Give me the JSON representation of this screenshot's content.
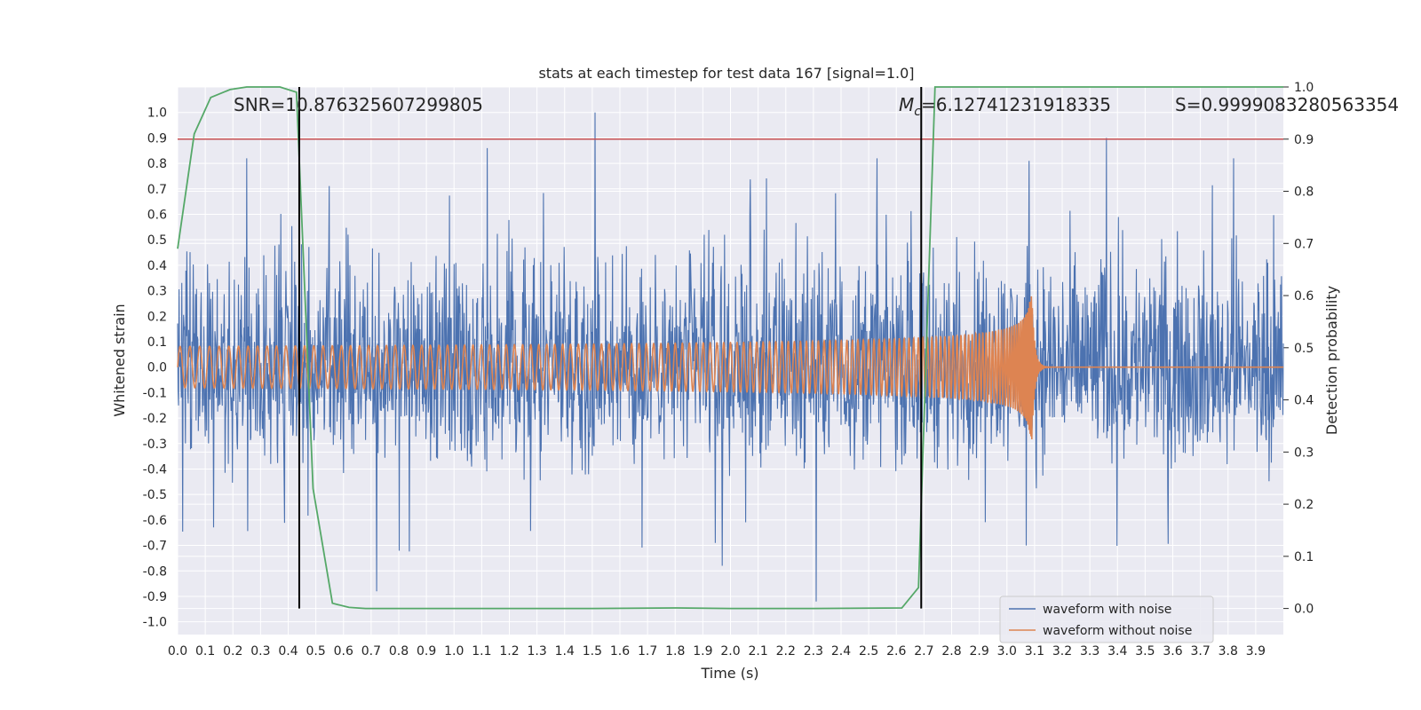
{
  "chart_data": {
    "type": "line",
    "title": "stats at each timestep for test data 167 [signal=1.0]",
    "xlabel": "Time (s)",
    "ylabel": "Whitened strain",
    "y2label": "Detection probability",
    "xlim": [
      0.0,
      4.0
    ],
    "ylim": [
      -1.05,
      1.1
    ],
    "y2lim": [
      -0.05,
      1.0
    ],
    "x_ticks": [
      "0.0",
      "0.1",
      "0.2",
      "0.3",
      "0.4",
      "0.5",
      "0.6",
      "0.7",
      "0.8",
      "0.9",
      "1.0",
      "1.1",
      "1.2",
      "1.3",
      "1.4",
      "1.5",
      "1.6",
      "1.7",
      "1.8",
      "1.9",
      "2.0",
      "2.1",
      "2.2",
      "2.3",
      "2.4",
      "2.5",
      "2.6",
      "2.7",
      "2.8",
      "2.9",
      "3.0",
      "3.1",
      "3.2",
      "3.3",
      "3.4",
      "3.5",
      "3.6",
      "3.7",
      "3.8",
      "3.9"
    ],
    "y_ticks": [
      "1.0",
      "0.9",
      "0.8",
      "0.7",
      "0.6",
      "0.5",
      "0.4",
      "0.3",
      "0.2",
      "0.1",
      "0.0",
      "-0.1",
      "-0.2",
      "-0.3",
      "-0.4",
      "-0.5",
      "-0.6",
      "-0.7",
      "-0.8",
      "-0.9",
      "-1.0"
    ],
    "y2_ticks": [
      "1.0",
      "0.9",
      "0.8",
      "0.7",
      "0.6",
      "0.5",
      "0.4",
      "0.3",
      "0.2",
      "0.1",
      "0.0"
    ],
    "grid": true,
    "legend_position": "lower-right",
    "series": [
      {
        "name": "waveform with noise",
        "color": "#4c72b0",
        "axis": "left",
        "noise": {
          "lower_band": -0.4,
          "upper_band": 0.5,
          "peaks": [
            [
              0.25,
              0.82
            ],
            [
              1.12,
              0.86
            ],
            [
              1.51,
              1.0
            ],
            [
              2.53,
              0.82
            ],
            [
              3.08,
              0.81
            ],
            [
              3.36,
              0.9
            ],
            [
              3.82,
              0.82
            ]
          ],
          "troughs": [
            [
              0.72,
              -0.88
            ],
            [
              1.97,
              -0.78
            ],
            [
              2.31,
              -0.92
            ],
            [
              3.07,
              -0.7
            ]
          ]
        }
      },
      {
        "name": "waveform without noise",
        "color": "#dd8452",
        "axis": "left",
        "chirp": {
          "start": 0.0,
          "merger": 3.09,
          "start_amplitude": 0.03,
          "peak_amplitude": 0.3,
          "start_freq_hz": 28
        }
      },
      {
        "name": "",
        "color": "#55a868",
        "axis": "right",
        "x": [
          0.0,
          0.06,
          0.12,
          0.19,
          0.25,
          0.31,
          0.37,
          0.43,
          0.49,
          0.56,
          0.62,
          0.68,
          0.74,
          0.8,
          1.0,
          1.5,
          1.8,
          2.0,
          2.3,
          2.62,
          2.68,
          2.74,
          2.8,
          3.0,
          3.5,
          4.0
        ],
        "y": [
          0.69,
          0.91,
          0.98,
          0.995,
          1.0,
          1.0,
          1.0,
          0.99,
          0.23,
          0.01,
          0.002,
          0.0,
          0.0,
          0.0,
          0.0,
          0.0,
          0.001,
          0.0,
          0.0,
          0.001,
          0.04,
          1.0,
          1.0,
          1.0,
          1.0,
          1.0
        ]
      }
    ],
    "hlines": [
      {
        "axis": "right",
        "y": 0.9,
        "color": "#c44e52"
      }
    ],
    "vlines": [
      {
        "x": 0.44,
        "color": "#000000"
      },
      {
        "x": 2.69,
        "color": "#000000"
      }
    ],
    "annotations": {
      "snr": "SNR=10.876325607299805",
      "mc_symbol": "M",
      "mc_subscript": "c",
      "mc_value": "=6.12741231918335",
      "s": "S=0.9999083280563354"
    }
  }
}
